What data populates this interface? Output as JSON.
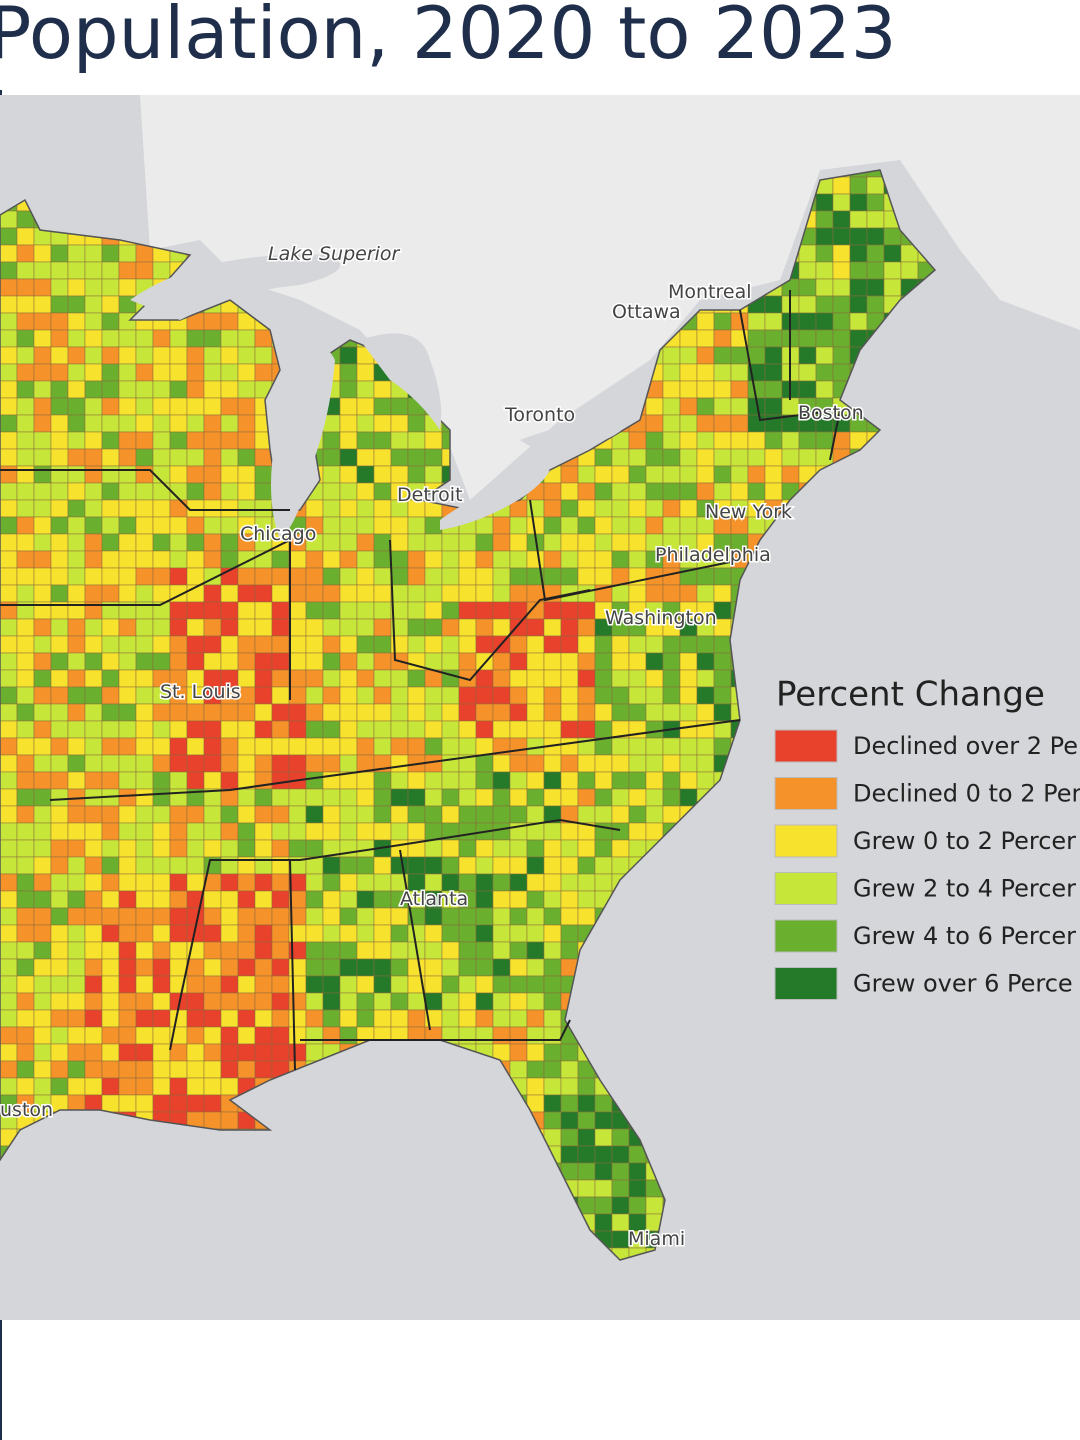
{
  "header": {
    "title": "Population, 2020 to 2023"
  },
  "map": {
    "labels": [
      "Lake Superior",
      "Montreal",
      "Ottawa",
      "Toronto",
      "Boston",
      "Detroit",
      "Chicago",
      "New York",
      "Philadelphia",
      "Washington",
      "St. Louis",
      "Atlanta",
      "Miami",
      "uston"
    ]
  },
  "legend": {
    "title": "Percent Change",
    "items": [
      {
        "label": "Declined over 2 Pe",
        "color": "#e8412c"
      },
      {
        "label": "Declined 0 to 2 Per",
        "color": "#f5922a"
      },
      {
        "label": "Grew 0 to 2 Percer",
        "color": "#f7e22e"
      },
      {
        "label": "Grew 2 to 4 Percer",
        "color": "#c7e63a"
      },
      {
        "label": "Grew 4 to 6 Percer",
        "color": "#6aaf2e"
      },
      {
        "label": "Grew over 6 Perce",
        "color": "#257a2a"
      }
    ]
  }
}
